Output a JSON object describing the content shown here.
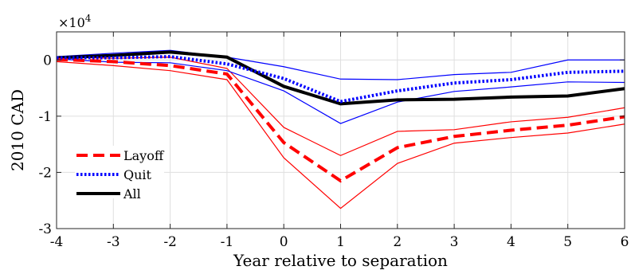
{
  "chart_data": {
    "type": "line",
    "xlabel": "Year relative to separation",
    "ylabel": "2010 CAD",
    "y_multiplier_label": "×10",
    "y_multiplier_exponent": "4",
    "xlim": [
      -4,
      6
    ],
    "ylim": [
      -3,
      0.5
    ],
    "x_scale": 10000,
    "grid": true,
    "legend_position": "lower-left",
    "x": [
      -4,
      -3,
      -2,
      -1,
      0,
      1,
      2,
      3,
      4,
      5,
      6
    ],
    "x_ticks": [
      -4,
      -3,
      -2,
      -1,
      0,
      1,
      2,
      3,
      4,
      5,
      6
    ],
    "x_tick_labels": [
      "-4",
      "-3",
      "-2",
      "-1",
      "0",
      "1",
      "2",
      "3",
      "4",
      "5",
      "6"
    ],
    "y_ticks": [
      -3,
      -2,
      -1,
      0
    ],
    "y_tick_labels": [
      "-3",
      "-2",
      "-1",
      "0"
    ],
    "series": [
      {
        "name": "Layoff",
        "color": "#ff0000",
        "style": "dashed",
        "values": [
          0.01,
          -0.03,
          -0.1,
          -0.25,
          -1.47,
          -2.15,
          -1.56,
          -1.36,
          -1.25,
          -1.16,
          -1.01
        ],
        "ci_upper": [
          0.05,
          0.03,
          0.05,
          -0.15,
          -1.2,
          -1.7,
          -1.27,
          -1.24,
          -1.1,
          -1.02,
          -0.85
        ],
        "ci_lower": [
          -0.03,
          -0.1,
          -0.19,
          -0.35,
          -1.74,
          -2.64,
          -1.84,
          -1.48,
          -1.38,
          -1.3,
          -1.14
        ]
      },
      {
        "name": "Quit",
        "color": "#0000ff",
        "style": "dotted",
        "values": [
          0.04,
          0.04,
          0.06,
          -0.07,
          -0.33,
          -0.74,
          -0.55,
          -0.41,
          -0.35,
          -0.22,
          -0.2
        ],
        "ci_upper": [
          0.06,
          0.12,
          0.17,
          0.05,
          -0.12,
          -0.34,
          -0.35,
          -0.26,
          -0.22,
          0.0,
          0.0
        ],
        "ci_lower": [
          0.02,
          -0.04,
          -0.05,
          -0.19,
          -0.55,
          -1.13,
          -0.75,
          -0.56,
          -0.48,
          -0.39,
          -0.4
        ]
      },
      {
        "name": "All",
        "color": "#000000",
        "style": "solid",
        "values": [
          0.04,
          0.08,
          0.14,
          0.05,
          -0.47,
          -0.78,
          -0.71,
          -0.7,
          -0.66,
          -0.64,
          -0.51
        ]
      }
    ]
  }
}
